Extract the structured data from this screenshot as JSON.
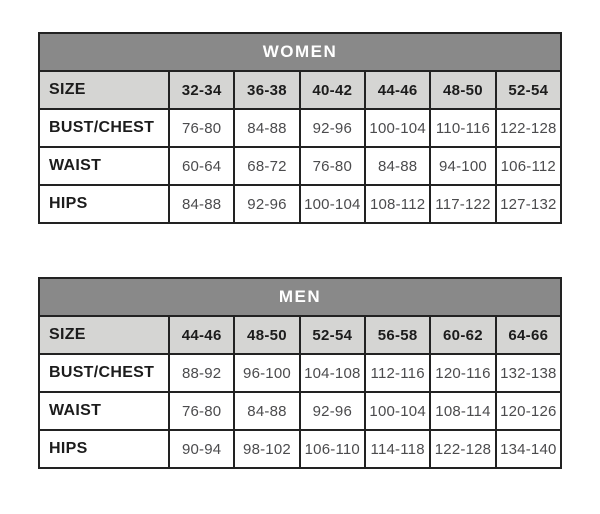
{
  "chart_data": [
    {
      "type": "table",
      "title": "WOMEN",
      "columns_label": "SIZE",
      "columns": [
        "32-34",
        "36-38",
        "40-42",
        "44-46",
        "48-50",
        "52-54"
      ],
      "rows": [
        {
          "label": "BUST/CHEST",
          "values": [
            "76-80",
            "84-88",
            "92-96",
            "100-104",
            "110-116",
            "122-128"
          ]
        },
        {
          "label": "WAIST",
          "values": [
            "60-64",
            "68-72",
            "76-80",
            "84-88",
            "94-100",
            "106-112"
          ]
        },
        {
          "label": "HIPS",
          "values": [
            "84-88",
            "92-96",
            "100-104",
            "108-112",
            "117-122",
            "127-132"
          ]
        }
      ]
    },
    {
      "type": "table",
      "title": "MEN",
      "columns_label": "SIZE",
      "columns": [
        "44-46",
        "48-50",
        "52-54",
        "56-58",
        "60-62",
        "64-66"
      ],
      "rows": [
        {
          "label": "BUST/CHEST",
          "values": [
            "88-92",
            "96-100",
            "104-108",
            "112-116",
            "120-116",
            "132-138"
          ]
        },
        {
          "label": "WAIST",
          "values": [
            "76-80",
            "84-88",
            "92-96",
            "100-104",
            "108-114",
            "120-126"
          ]
        },
        {
          "label": "HIPS",
          "values": [
            "90-94",
            "98-102",
            "106-110",
            "114-118",
            "122-128",
            "134-140"
          ]
        }
      ]
    }
  ],
  "colors": {
    "page_bg": "#ffffff",
    "header_bg": "#898989",
    "header_text": "#ffffff",
    "size_row_bg": "#d5d5d3",
    "border": "#222222",
    "label_text": "#1c1c1c",
    "value_text": "#4b4b4d"
  }
}
